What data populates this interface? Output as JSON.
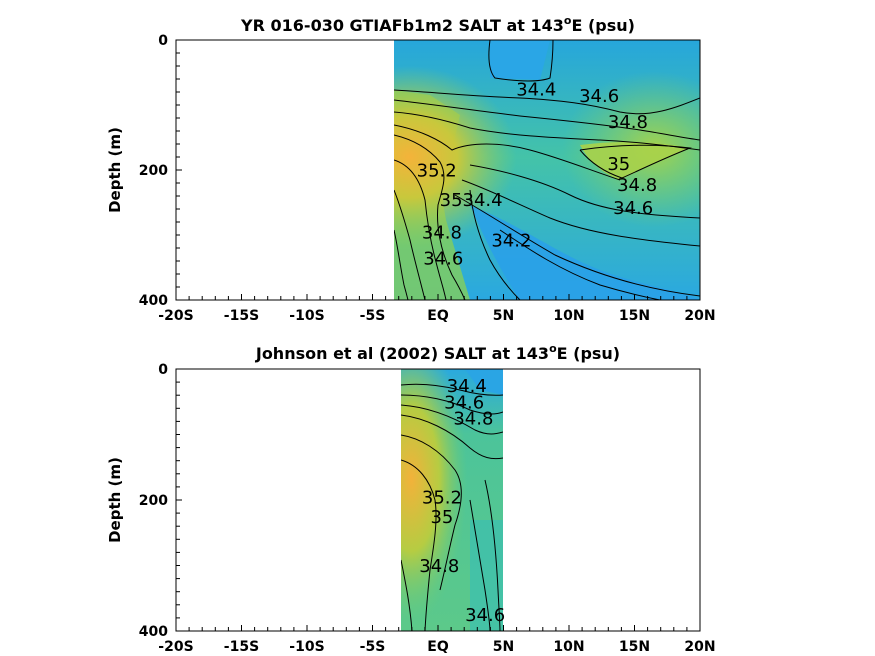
{
  "chart_data": [
    {
      "type": "heatmap",
      "title": "YR 016-030 GTIAFb1m2 SALT at 143",
      "title_sup": "o",
      "title_tail": "E (psu)",
      "ylabel": "Depth (m)",
      "xlim": [
        -20,
        20
      ],
      "ylim": [
        0,
        400
      ],
      "y_reversed": true,
      "x_ticks": [
        "-20S",
        "-15S",
        "-10S",
        "-5S",
        "EQ",
        "5N",
        "10N",
        "15N",
        "20N"
      ],
      "y_ticks": [
        "0",
        "200",
        "400"
      ],
      "data_x_range": [
        -3.3,
        20
      ],
      "grid": false,
      "contour_labels": [
        {
          "text": "34.4",
          "x": 7.5,
          "y": 85
        },
        {
          "text": "34.6",
          "x": 12.3,
          "y": 95
        },
        {
          "text": "34.8",
          "x": 14.5,
          "y": 135
        },
        {
          "text": "35",
          "x": 13.8,
          "y": 200
        },
        {
          "text": "34.8",
          "x": 15.2,
          "y": 232
        },
        {
          "text": "34.6",
          "x": 14.9,
          "y": 268
        },
        {
          "text": "35.2",
          "x": -0.1,
          "y": 210
        },
        {
          "text": "35",
          "x": 1.0,
          "y": 255
        },
        {
          "text": "34.4",
          "x": 3.4,
          "y": 255
        },
        {
          "text": "34.8",
          "x": 0.3,
          "y": 305
        },
        {
          "text": "34.2",
          "x": 5.6,
          "y": 318
        },
        {
          "text": "34.6",
          "x": 0.4,
          "y": 345
        }
      ]
    },
    {
      "type": "heatmap",
      "title": "Johnson et al (2002) SALT at 143",
      "title_sup": "o",
      "title_tail": "E (psu)",
      "ylabel": "Depth (m)",
      "xlim": [
        -20,
        20
      ],
      "ylim": [
        0,
        400
      ],
      "y_reversed": true,
      "x_ticks": [
        "-20S",
        "-15S",
        "-10S",
        "-5S",
        "EQ",
        "5N",
        "10N",
        "15N",
        "20N"
      ],
      "y_ticks": [
        "0",
        "200",
        "400"
      ],
      "data_x_range": [
        -2.8,
        5
      ],
      "grid": false,
      "contour_labels": [
        {
          "text": "34.4",
          "x": 2.2,
          "y": 35
        },
        {
          "text": "34.6",
          "x": 2.0,
          "y": 60
        },
        {
          "text": "34.8",
          "x": 2.7,
          "y": 85
        },
        {
          "text": "35.2",
          "x": 0.3,
          "y": 205
        },
        {
          "text": "35",
          "x": 0.3,
          "y": 235
        },
        {
          "text": "34.8",
          "x": 0.1,
          "y": 310
        },
        {
          "text": "34.6",
          "x": 3.6,
          "y": 385
        }
      ]
    }
  ]
}
